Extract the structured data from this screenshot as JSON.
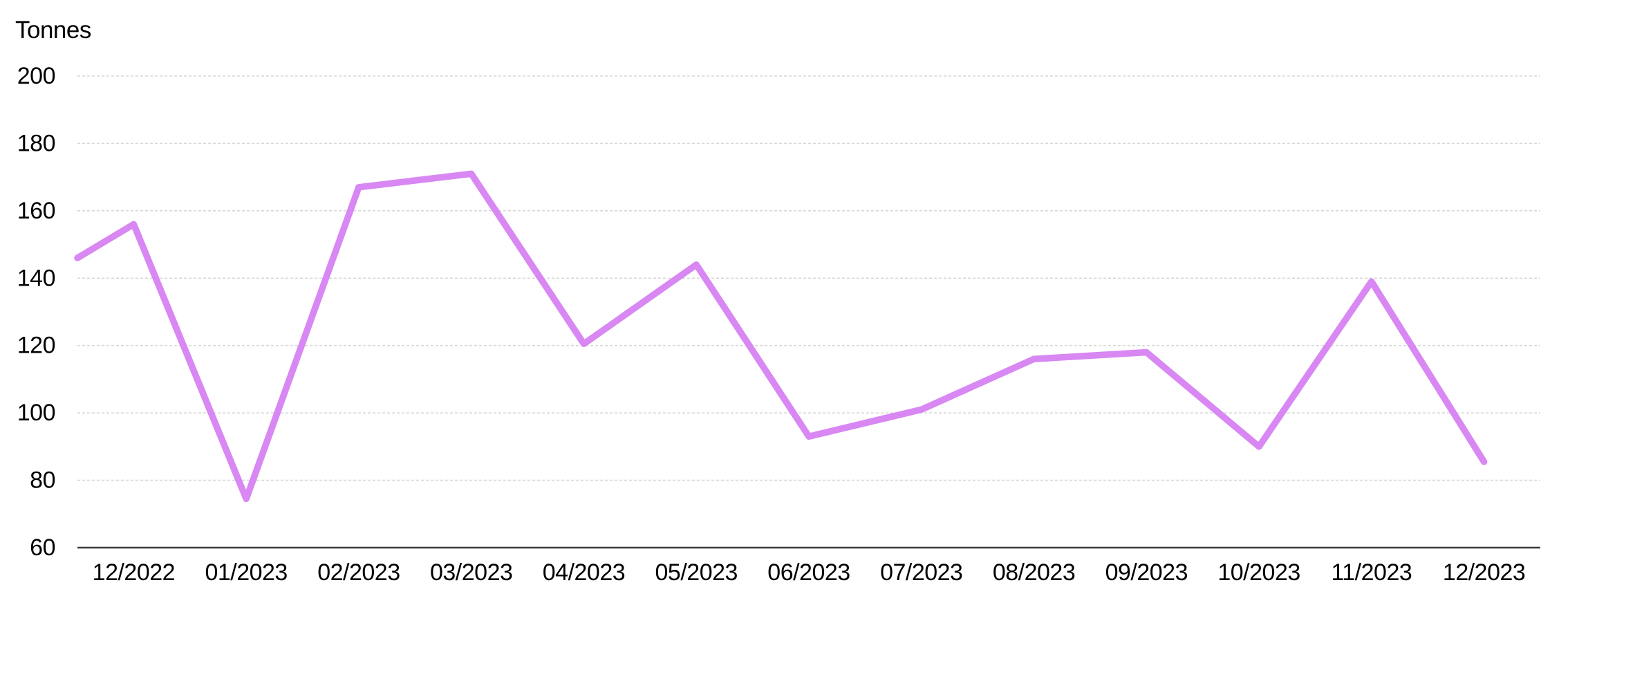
{
  "chart_data": {
    "type": "line",
    "ylabel": "Tonnes",
    "categories": [
      "12/2022",
      "01/2023",
      "02/2023",
      "03/2023",
      "04/2023",
      "05/2023",
      "06/2023",
      "07/2023",
      "08/2023",
      "09/2023",
      "10/2023",
      "11/2023",
      "12/2023"
    ],
    "series": [
      {
        "name": "Tonnes",
        "values": [
          156,
          74.5,
          167,
          171,
          120.5,
          144,
          93,
          101,
          116,
          118,
          90,
          139,
          85.5
        ],
        "left_edge_entry_value": 146,
        "color": "#d887f3"
      }
    ],
    "y_ticks": [
      200,
      180,
      160,
      140,
      120,
      100,
      80,
      60
    ],
    "ylim": [
      60,
      200
    ],
    "grid": true,
    "legend": "none",
    "gridline_color": "#d7d7d7",
    "axis_line_color": "#3a3a3a",
    "text_color": "#000000",
    "background": "#ffffff"
  }
}
